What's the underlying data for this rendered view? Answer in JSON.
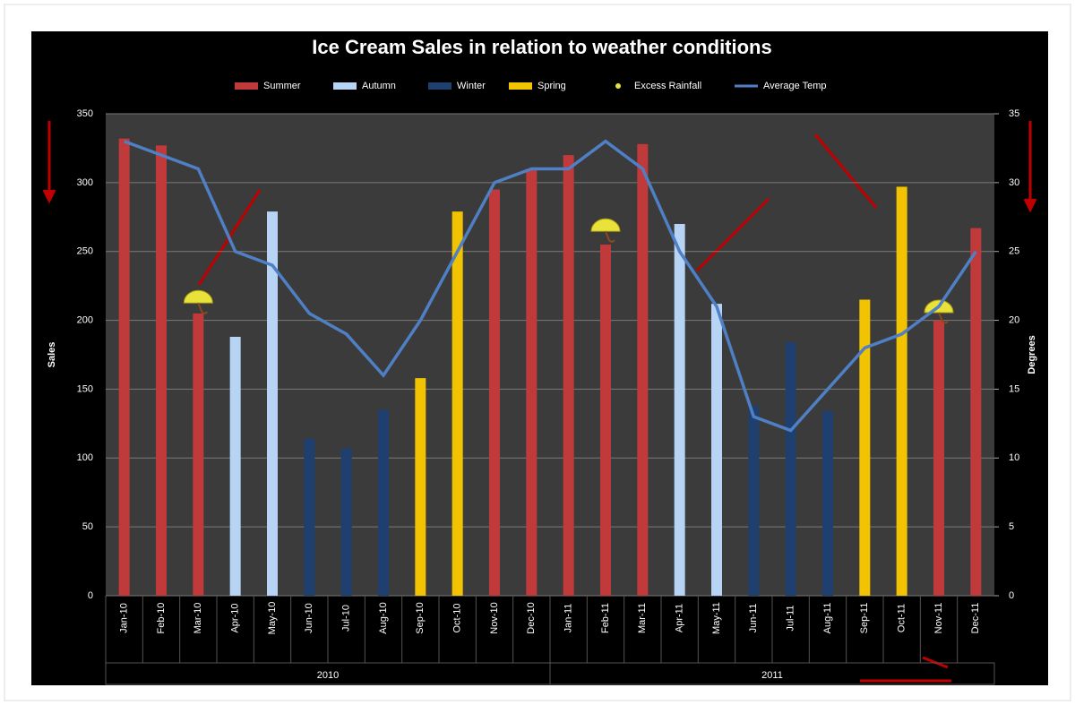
{
  "chart_data": {
    "type": "bar",
    "title": "Ice Cream Sales in relation to weather conditions",
    "y_label": "Sales",
    "y2_label": "Degrees",
    "categories": [
      "Jan-10",
      "Feb-10",
      "Mar-10",
      "Apr-10",
      "May-10",
      "Jun-10",
      "Jul-10",
      "Aug-10",
      "Sep-10",
      "Oct-10",
      "Nov-10",
      "Dec-10",
      "Jan-11",
      "Feb-11",
      "Mar-11",
      "Apr-11",
      "May-11",
      "Jun-11",
      "Jul-11",
      "Aug-11",
      "Sep-11",
      "Oct-11",
      "Nov-11",
      "Dec-11"
    ],
    "groups": [
      "2010",
      "2011"
    ],
    "series": [
      {
        "name": "Summer",
        "color": "#c0393b",
        "values": [
          332,
          327,
          205,
          null,
          null,
          null,
          null,
          null,
          null,
          null,
          295,
          309,
          320,
          255,
          328,
          null,
          null,
          null,
          null,
          null,
          null,
          null,
          200,
          267
        ]
      },
      {
        "name": "Autumn",
        "color": "#b8d4f5",
        "values": [
          null,
          null,
          null,
          188,
          279,
          null,
          null,
          null,
          null,
          null,
          null,
          null,
          null,
          null,
          null,
          270,
          212,
          null,
          null,
          null,
          null,
          null,
          null,
          null
        ]
      },
      {
        "name": "Winter",
        "color": "#1f3f6e",
        "values": [
          null,
          null,
          null,
          null,
          null,
          114,
          107,
          135,
          null,
          null,
          null,
          null,
          null,
          null,
          null,
          null,
          null,
          138,
          184,
          134,
          null,
          null,
          null,
          null
        ]
      },
      {
        "name": "Spring",
        "color": "#f2c300",
        "values": [
          null,
          null,
          null,
          null,
          null,
          null,
          null,
          null,
          158,
          279,
          null,
          null,
          null,
          null,
          null,
          null,
          null,
          null,
          null,
          null,
          215,
          297,
          null,
          null
        ]
      },
      {
        "name": "Excess Rainfall",
        "type": "marker",
        "color": "#e8e23a",
        "values": [
          null,
          null,
          210,
          null,
          null,
          null,
          null,
          null,
          null,
          null,
          null,
          null,
          null,
          262,
          null,
          null,
          null,
          null,
          null,
          null,
          null,
          null,
          203,
          null
        ]
      },
      {
        "name": "Average Temp",
        "type": "line",
        "axis": "y2",
        "color": "#4f7fc4",
        "values": [
          33,
          32,
          31,
          25,
          24,
          20.5,
          19,
          16,
          20,
          25,
          30,
          31,
          31,
          33,
          31,
          25,
          21,
          13,
          12,
          15,
          18,
          19,
          21,
          25
        ]
      }
    ],
    "ylim": [
      0,
      350
    ],
    "yticks": [
      0,
      50,
      100,
      150,
      200,
      250,
      300,
      350
    ],
    "y2lim": [
      0,
      35
    ],
    "y2ticks": [
      0,
      5,
      10,
      15,
      20,
      25,
      30,
      35
    ],
    "grid": true
  }
}
